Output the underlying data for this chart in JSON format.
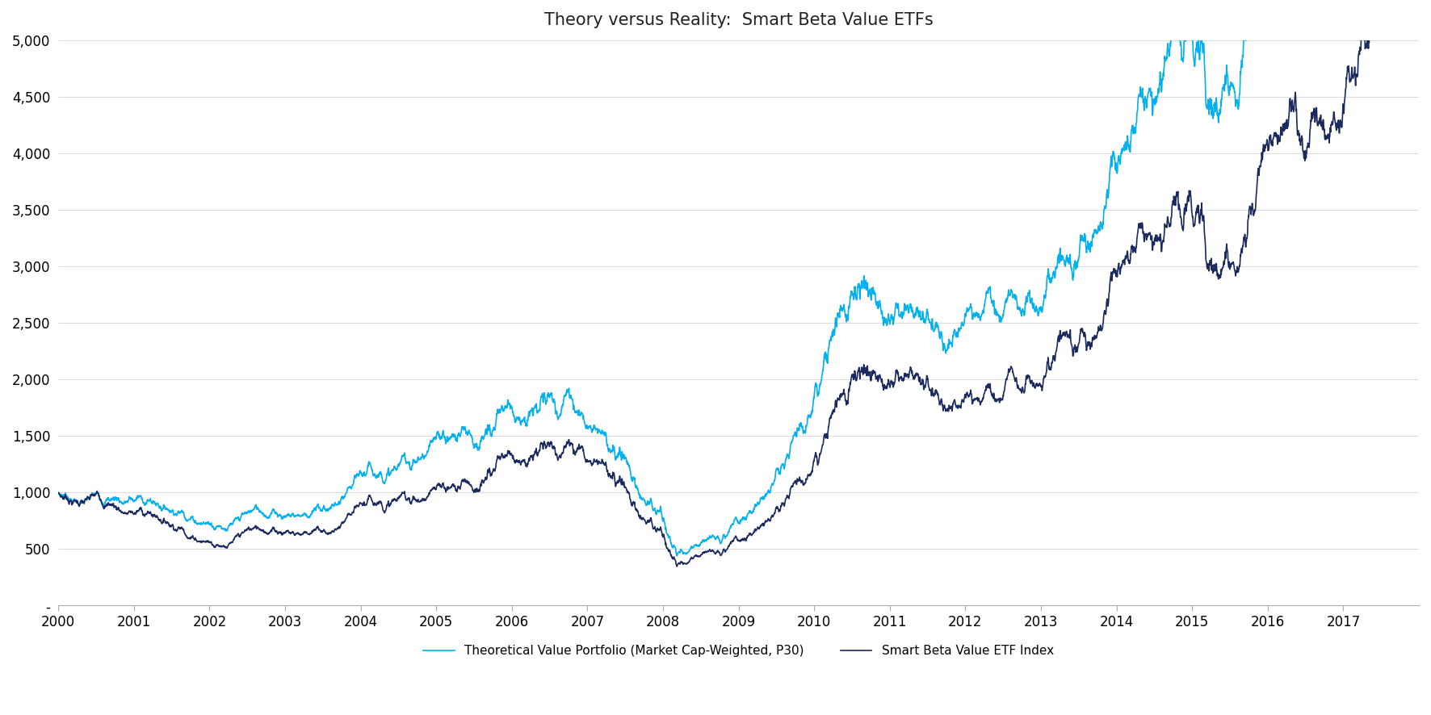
{
  "title": "Theory versus Reality:  Smart Beta Value ETFs",
  "title_fontsize": 15,
  "legend1_label": "Smart Beta Value ETF Index",
  "legend2_label": "Theoretical Value Portfolio (Market Cap-Weighted, P30)",
  "line1_color": "#1a2a5e",
  "line2_color": "#00b0f0",
  "background_color": "#ffffff",
  "ylim": [
    0,
    5000
  ],
  "yticks": [
    0,
    500,
    1000,
    1500,
    2000,
    2500,
    3000,
    3500,
    4000,
    4500,
    5000
  ],
  "ytick_labels": [
    "-",
    "500",
    "1,000",
    "1,500",
    "2,000",
    "2,500",
    "3,000",
    "3,500",
    "4,000",
    "4,500",
    "5,000"
  ],
  "xtick_labels": [
    "2000",
    "2001",
    "2002",
    "2003",
    "2004",
    "2005",
    "2006",
    "2007",
    "2008",
    "2009",
    "2010",
    "2011",
    "2012",
    "2013",
    "2014",
    "2015",
    "2016",
    "2017"
  ],
  "line_width": 1.2,
  "legend_fontsize": 11
}
